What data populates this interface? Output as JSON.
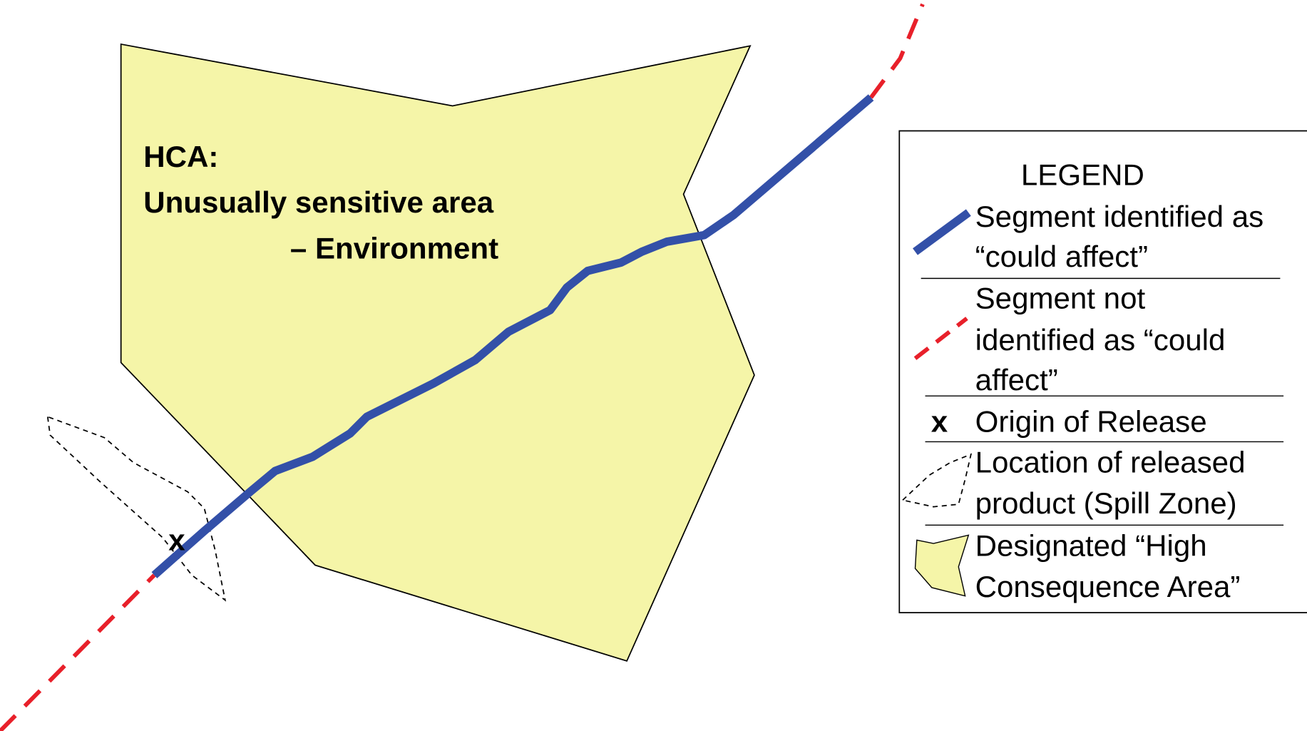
{
  "hca_label": {
    "title": "HCA:",
    "lines": [
      "Unusually sensitive area",
      "– Environment"
    ]
  },
  "map_marker": "x",
  "legend": {
    "title": "LEGEND",
    "items": [
      {
        "lines": [
          "Segment identified as",
          "“could affect”"
        ]
      },
      {
        "lines": [
          "Segment not",
          "identified as “could",
          "affect”"
        ]
      },
      {
        "symbol": "x",
        "lines": [
          "Origin of Release"
        ]
      },
      {
        "lines": [
          "Location of released",
          "product (Spill Zone)"
        ]
      },
      {
        "lines": [
          "Designated “High",
          "Consequence Area”"
        ]
      }
    ]
  }
}
